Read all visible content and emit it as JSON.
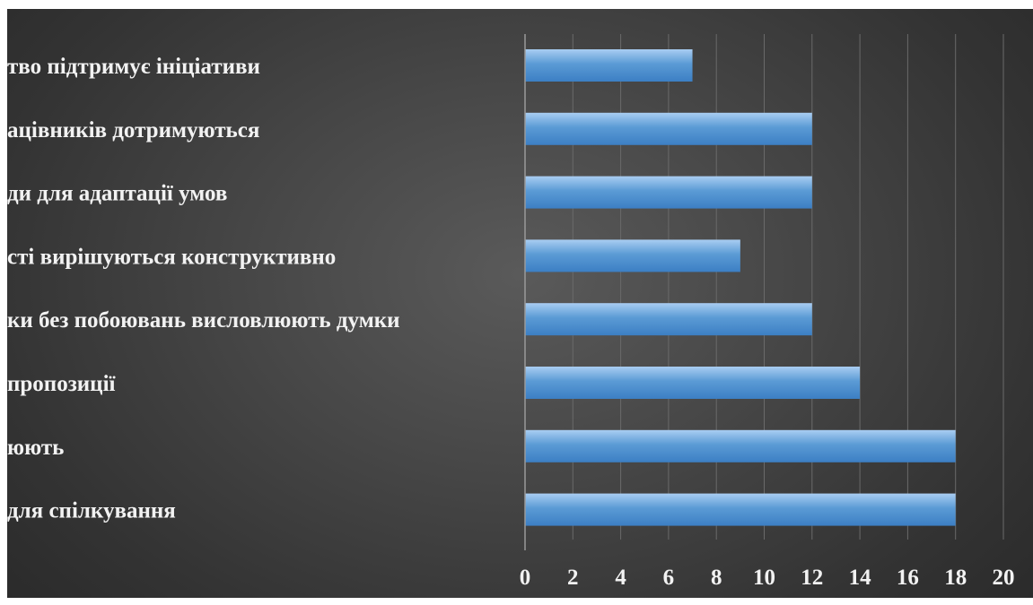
{
  "chart_data": {
    "type": "bar",
    "orientation": "horizontal",
    "categories": [
      "тво підтримує ініціативи",
      "ацівників дотримуються",
      "ди для адаптації умов",
      "сті вирішуються конструктивно",
      "ки без побоювань висловлюють думки",
      "пропозиції",
      "юють",
      "для спілкування"
    ],
    "values": [
      7,
      12,
      12,
      9,
      12,
      14,
      18,
      18
    ],
    "xlim": [
      0,
      20
    ],
    "x_ticks": [
      "0",
      "2",
      "4",
      "6",
      "8",
      "10",
      "12",
      "14",
      "16",
      "18",
      "20"
    ],
    "title": "",
    "xlabel": "",
    "ylabel": "",
    "grid": "vertical",
    "legend": "none",
    "colors": {
      "bar_top": "#a9cdf2",
      "bar_mid": "#5b9bd5",
      "bar_bottom": "#3c7fc4",
      "text": "#f2f2f2",
      "grid": "#6a6a6a"
    }
  }
}
